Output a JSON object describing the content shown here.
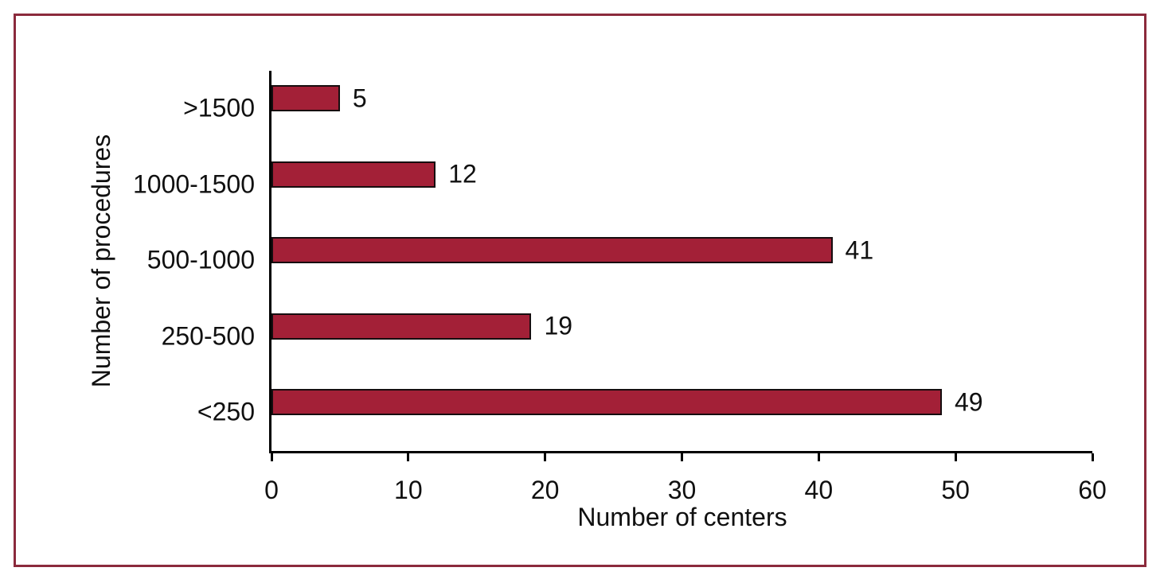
{
  "chart_data": {
    "type": "bar",
    "orientation": "horizontal",
    "categories": [
      ">1500",
      "1000-1500",
      "500-1000",
      "250-500",
      "<250"
    ],
    "values": [
      5,
      12,
      41,
      19,
      49
    ],
    "data_labels": [
      "5",
      "12",
      "41",
      "19",
      "49"
    ],
    "xlabel": "Number of centers",
    "ylabel": "Number of procedures",
    "xlim": [
      0,
      60
    ],
    "xticks": [
      "0",
      "10",
      "20",
      "30",
      "40",
      "50",
      "60"
    ],
    "grid": false,
    "legend": null,
    "colors": {
      "bar_fill": "#A32037",
      "bar_border": "#160D0F",
      "frame_border": "#8B2A3C",
      "axis": "#000000",
      "text": "#101010"
    }
  }
}
